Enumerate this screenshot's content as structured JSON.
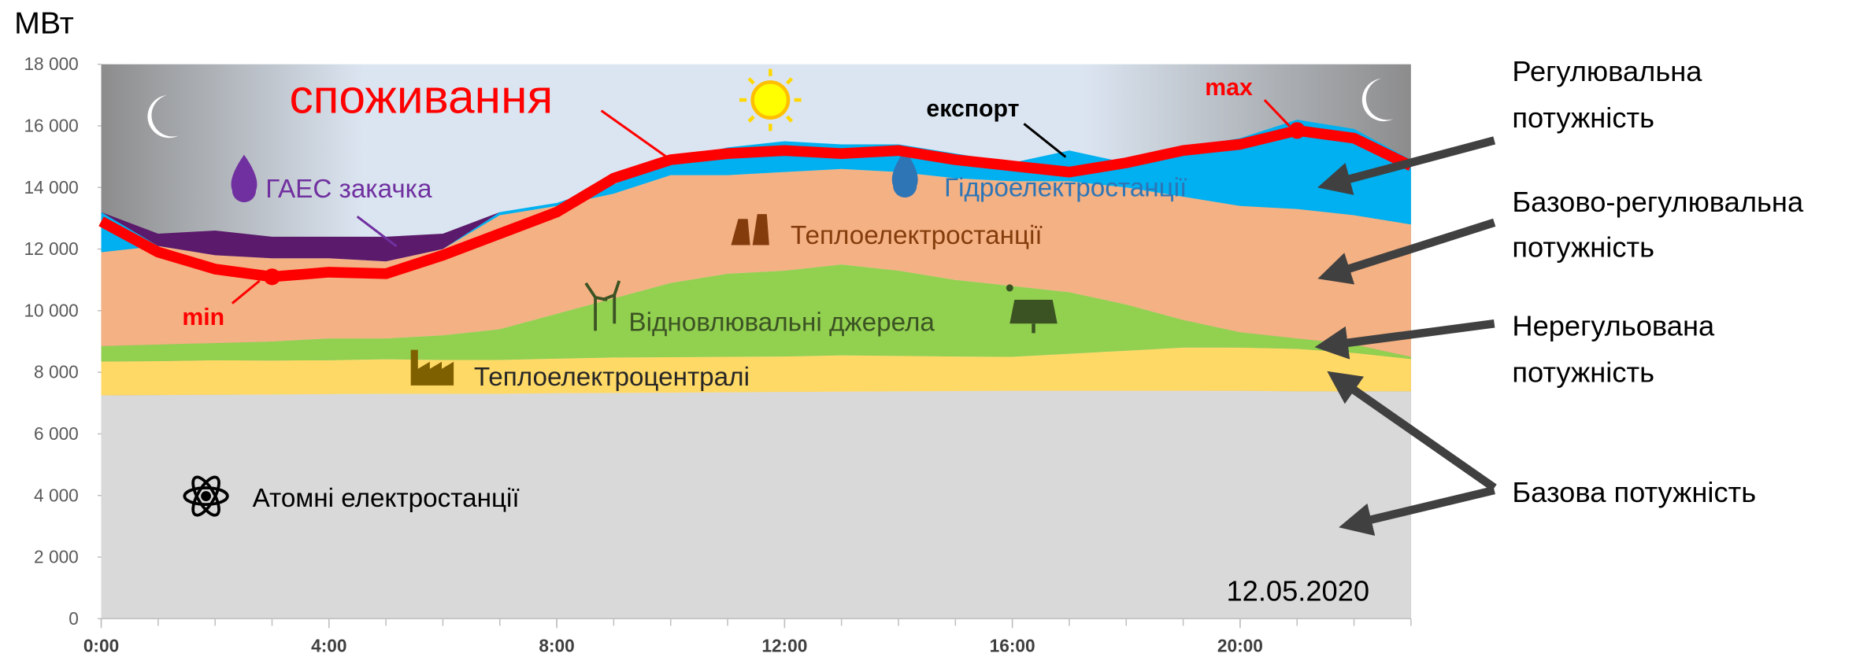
{
  "chart_data": {
    "type": "area",
    "y_label": "МВт",
    "x": [
      0,
      1,
      2,
      3,
      4,
      5,
      6,
      7,
      8,
      9,
      10,
      11,
      12,
      13,
      14,
      15,
      16,
      17,
      18,
      19,
      20,
      21,
      22,
      23
    ],
    "xlim": [
      0,
      23
    ],
    "xticks": [
      {
        "value": 0,
        "label": "0:00"
      },
      {
        "value": 4,
        "label": "4:00"
      },
      {
        "value": 8,
        "label": "8:00"
      },
      {
        "value": 12,
        "label": "12:00"
      },
      {
        "value": 16,
        "label": "16:00"
      },
      {
        "value": 20,
        "label": "20:00"
      }
    ],
    "ylim": [
      0,
      18000
    ],
    "yticks": [
      0,
      {
        "value": 2000,
        "label": "2 000"
      },
      {
        "value": 4000,
        "label": "4 000"
      },
      {
        "value": 6000,
        "label": "6 000"
      },
      {
        "value": 8000,
        "label": "8 000"
      },
      {
        "value": 10000,
        "label": "10 000"
      },
      {
        "value": 12000,
        "label": "12 000"
      },
      {
        "value": 14000,
        "label": "14 000"
      },
      {
        "value": 16000,
        "label": "16 000"
      },
      {
        "value": 18000,
        "label": "18 000"
      }
    ],
    "stacked": true,
    "series": [
      {
        "name": "Атомні електростанції",
        "color": "#d9d9d9",
        "label_color": "#000000",
        "values": [
          7250,
          7260,
          7270,
          7280,
          7290,
          7300,
          7300,
          7300,
          7320,
          7330,
          7340,
          7350,
          7360,
          7370,
          7380,
          7390,
          7400,
          7400,
          7400,
          7400,
          7400,
          7380,
          7380,
          7380
        ]
      },
      {
        "name": "Теплоелектроцентралі",
        "color": "#ffd966",
        "label_color": "#262626",
        "values": [
          1100,
          1100,
          1120,
          1100,
          1100,
          1120,
          1100,
          1100,
          1120,
          1150,
          1150,
          1150,
          1150,
          1180,
          1150,
          1120,
          1100,
          1200,
          1300,
          1400,
          1400,
          1380,
          1250,
          1050
        ]
      },
      {
        "name": "Відновлювальні джерела",
        "color": "#92d050",
        "label_color": "#3b5323",
        "values": [
          500,
          540,
          560,
          620,
          710,
          680,
          800,
          1000,
          1460,
          1920,
          2410,
          2700,
          2790,
          2950,
          2770,
          2490,
          2300,
          2000,
          1500,
          900,
          500,
          340,
          270,
          70
        ]
      },
      {
        "name": "Теплоелектростанції",
        "color": "#f4b183",
        "label_color": "#843c0c",
        "values": [
          3050,
          3200,
          2850,
          2700,
          2600,
          2500,
          2800,
          3700,
          3500,
          3400,
          3500,
          3200,
          3200,
          3100,
          3200,
          3300,
          3400,
          3600,
          3800,
          4000,
          4100,
          4200,
          4200,
          4300
        ]
      },
      {
        "name": "Гідроелектростанції",
        "color": "#00b0f0",
        "label_color": "#2e75b6",
        "values": [
          1300,
          0,
          0,
          0,
          0,
          0,
          0,
          100,
          100,
          300,
          500,
          900,
          1000,
          800,
          900,
          800,
          600,
          1000,
          800,
          1600,
          2200,
          2900,
          2800,
          2100
        ]
      },
      {
        "name": "ГАЕС закачка",
        "color": "#5b1a6b",
        "label_color": "#7030a0",
        "values": [
          0,
          400,
          800,
          700,
          700,
          800,
          500,
          0,
          0,
          0,
          0,
          0,
          0,
          0,
          0,
          0,
          0,
          0,
          0,
          0,
          0,
          0,
          0,
          0
        ]
      },
      {
        "name": "споживання",
        "type": "line",
        "color": "#ff0000",
        "values": [
          12900,
          11900,
          11350,
          11100,
          11250,
          11200,
          11800,
          12500,
          13200,
          14300,
          14900,
          15100,
          15200,
          15100,
          15200,
          14900,
          14700,
          14500,
          14800,
          15200,
          15400,
          15850,
          15600,
          14700
        ]
      }
    ],
    "annotations": {
      "min": "min",
      "max": "max",
      "export": "експорт",
      "date": "12.05.2020"
    },
    "right_labels": [
      {
        "lines": [
          "Регулювальна",
          "потужність"
        ]
      },
      {
        "lines": [
          "Базово-регулювальна",
          "потужність"
        ]
      },
      {
        "lines": [
          "Нерегульована",
          "потужність"
        ]
      },
      {
        "lines": [
          "Базова потужність"
        ]
      }
    ]
  }
}
